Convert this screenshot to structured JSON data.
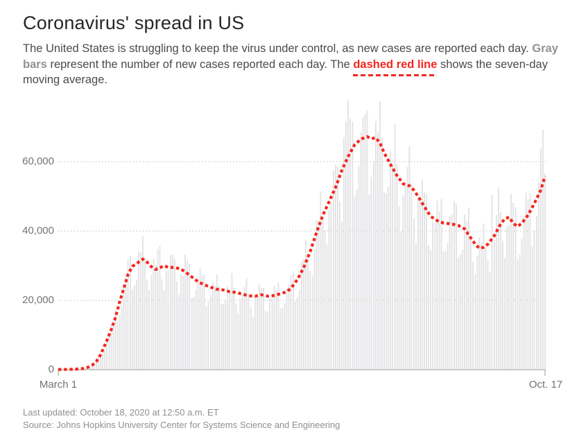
{
  "header": {
    "title": "Coronavirus' spread in US"
  },
  "subtitle": {
    "part1": "The United States is struggling to keep the virus under control, as new cases are reported each day. ",
    "gray_phrase": "Gray bars",
    "part2": " represent the number of new cases reported each day. The ",
    "red_phrase": "dashed red line",
    "part3": " shows the seven-day moving average."
  },
  "footer": {
    "last_updated": "Last updated: October 18, 2020 at 12:50 a.m. ET",
    "source": "Source: Johns Hopkins University Center for Systems Science and Engineering"
  },
  "colors": {
    "title_text": "#262626",
    "body_text": "#4a4a4a",
    "gray_phrase": "#919191",
    "red_accent": "#f4271e",
    "bar_fill": "#e4e4e7",
    "gridline": "#cbcbcb",
    "axis_line": "#9b9b9b",
    "tick_label": "#737373",
    "footer_text": "#8f8f8f"
  },
  "chart_data": {
    "type": "bar+line",
    "title": "Coronavirus' spread in US",
    "bar_series_name": "New cases reported each day",
    "line_series_name": "Seven-day moving average",
    "x_range": [
      "March 1",
      "Oct. 17"
    ],
    "xtick_labels": [
      "March 1",
      "Oct. 17"
    ],
    "ytick_values": [
      0,
      20000,
      40000,
      60000
    ],
    "ytick_labels": [
      "0",
      "20,000",
      "40,000",
      "60,000"
    ],
    "ylim": [
      0,
      78000
    ],
    "grid": "dotted-horizontal",
    "legend_position": "none",
    "n_days": 231,
    "start_weekday_sun0": 0,
    "avg_anchors": [
      [
        0,
        70
      ],
      [
        4,
        90
      ],
      [
        8,
        150
      ],
      [
        12,
        350
      ],
      [
        14,
        700
      ],
      [
        16,
        1300
      ],
      [
        18,
        2400
      ],
      [
        20,
        4300
      ],
      [
        21,
        5700
      ],
      [
        23,
        8500
      ],
      [
        25,
        11500
      ],
      [
        27,
        15000
      ],
      [
        29,
        19500
      ],
      [
        31,
        23500
      ],
      [
        33,
        27500
      ],
      [
        35,
        29800
      ],
      [
        37,
        30600
      ],
      [
        40,
        31900
      ],
      [
        42,
        31000
      ],
      [
        44,
        29700
      ],
      [
        46,
        28900
      ],
      [
        48,
        29400
      ],
      [
        50,
        30000
      ],
      [
        52,
        29500
      ],
      [
        55,
        29500
      ],
      [
        58,
        29000
      ],
      [
        60,
        28200
      ],
      [
        63,
        26800
      ],
      [
        66,
        25400
      ],
      [
        69,
        24500
      ],
      [
        72,
        23800
      ],
      [
        75,
        23200
      ],
      [
        78,
        23000
      ],
      [
        81,
        22500
      ],
      [
        84,
        22300
      ],
      [
        87,
        21800
      ],
      [
        90,
        21300
      ],
      [
        93,
        21200
      ],
      [
        96,
        21600
      ],
      [
        99,
        21200
      ],
      [
        102,
        21400
      ],
      [
        105,
        21900
      ],
      [
        108,
        22500
      ],
      [
        110,
        23500
      ],
      [
        113,
        26000
      ],
      [
        116,
        29500
      ],
      [
        119,
        34000
      ],
      [
        122,
        39500
      ],
      [
        125,
        44500
      ],
      [
        128,
        48500
      ],
      [
        131,
        52500
      ],
      [
        134,
        57500
      ],
      [
        137,
        61500
      ],
      [
        140,
        64800
      ],
      [
        143,
        66500
      ],
      [
        146,
        67200
      ],
      [
        148,
        66600
      ],
      [
        150,
        66900
      ],
      [
        152,
        65400
      ],
      [
        154,
        62500
      ],
      [
        157,
        59200
      ],
      [
        160,
        56000
      ],
      [
        163,
        53600
      ],
      [
        166,
        53000
      ],
      [
        168,
        51800
      ],
      [
        170,
        50000
      ],
      [
        173,
        47000
      ],
      [
        176,
        44200
      ],
      [
        179,
        43000
      ],
      [
        182,
        42300
      ],
      [
        186,
        42000
      ],
      [
        189,
        41600
      ],
      [
        192,
        40600
      ],
      [
        194,
        38800
      ],
      [
        197,
        36200
      ],
      [
        199,
        35000
      ],
      [
        201,
        35300
      ],
      [
        203,
        36200
      ],
      [
        206,
        38600
      ],
      [
        209,
        42000
      ],
      [
        211,
        43500
      ],
      [
        213,
        44000
      ],
      [
        215,
        42200
      ],
      [
        217,
        41300
      ],
      [
        219,
        42200
      ],
      [
        222,
        44600
      ],
      [
        225,
        48000
      ],
      [
        228,
        51800
      ],
      [
        230,
        55800
      ]
    ],
    "bar_weekday_factors_sun_to_sat": [
      0.82,
      0.78,
      0.92,
      1.03,
      1.1,
      1.16,
      1.08
    ],
    "bar_wobble_cycle": [
      1.0,
      1.06,
      0.95,
      1.03,
      0.92,
      1.07,
      0.98,
      1.04,
      0.94,
      1.02,
      0.97
    ],
    "bar_outliers": {
      "48": 35600,
      "135": 67000,
      "136": 71500,
      "137": 77600,
      "138": 72500,
      "144": 72800,
      "166": 64500,
      "205": 50500,
      "208": 52500,
      "228": 63800,
      "229": 69200,
      "230": 56500
    }
  }
}
